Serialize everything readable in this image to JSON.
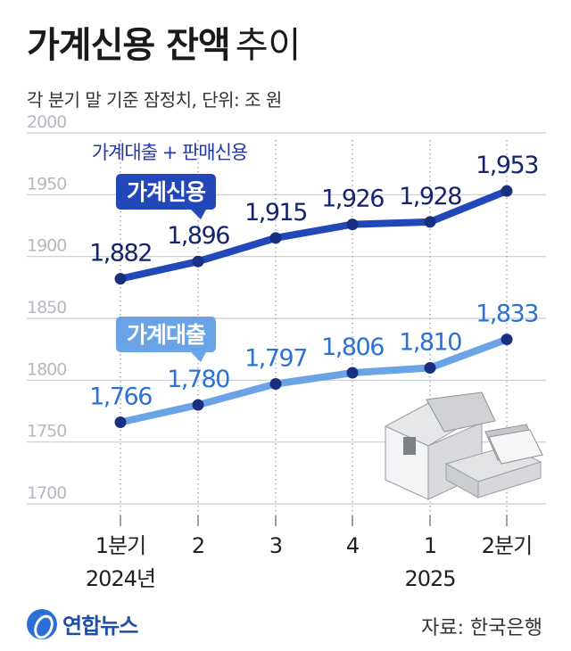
{
  "title": {
    "main": "가계신용 잔액",
    "suffix": "추이"
  },
  "subtitle": "각 분기 말 기준 잠정치, 단위: 조 원",
  "colors": {
    "credit": "#2247b8",
    "loan": "#6aa3e6",
    "grid": "#c9ccd2",
    "axis_text": "#b4b8bf"
  },
  "chart_data": {
    "type": "line",
    "categories": [
      "1분기",
      "2",
      "3",
      "4",
      "1",
      "2분기"
    ],
    "year_labels": [
      "2024년",
      "2025"
    ],
    "ylim": [
      1700,
      2000
    ],
    "yticks": [
      1700,
      1750,
      1800,
      1850,
      1900,
      1950,
      2000
    ],
    "annotation": "가계대출 + 판매신용",
    "series": [
      {
        "name": "가계신용",
        "values": [
          1882,
          1896,
          1915,
          1926,
          1928,
          1953
        ],
        "labels": [
          "1,882",
          "1,896",
          "1,915",
          "1,926",
          "1,928",
          "1,953"
        ]
      },
      {
        "name": "가계대출",
        "values": [
          1766,
          1780,
          1797,
          1806,
          1810,
          1833
        ],
        "labels": [
          "1,766",
          "1,780",
          "1,797",
          "1,806",
          "1,810",
          "1,833"
        ]
      }
    ],
    "grid": true
  },
  "footer": {
    "logo_text": "연합뉴스",
    "source": "자료: 한국은행"
  }
}
